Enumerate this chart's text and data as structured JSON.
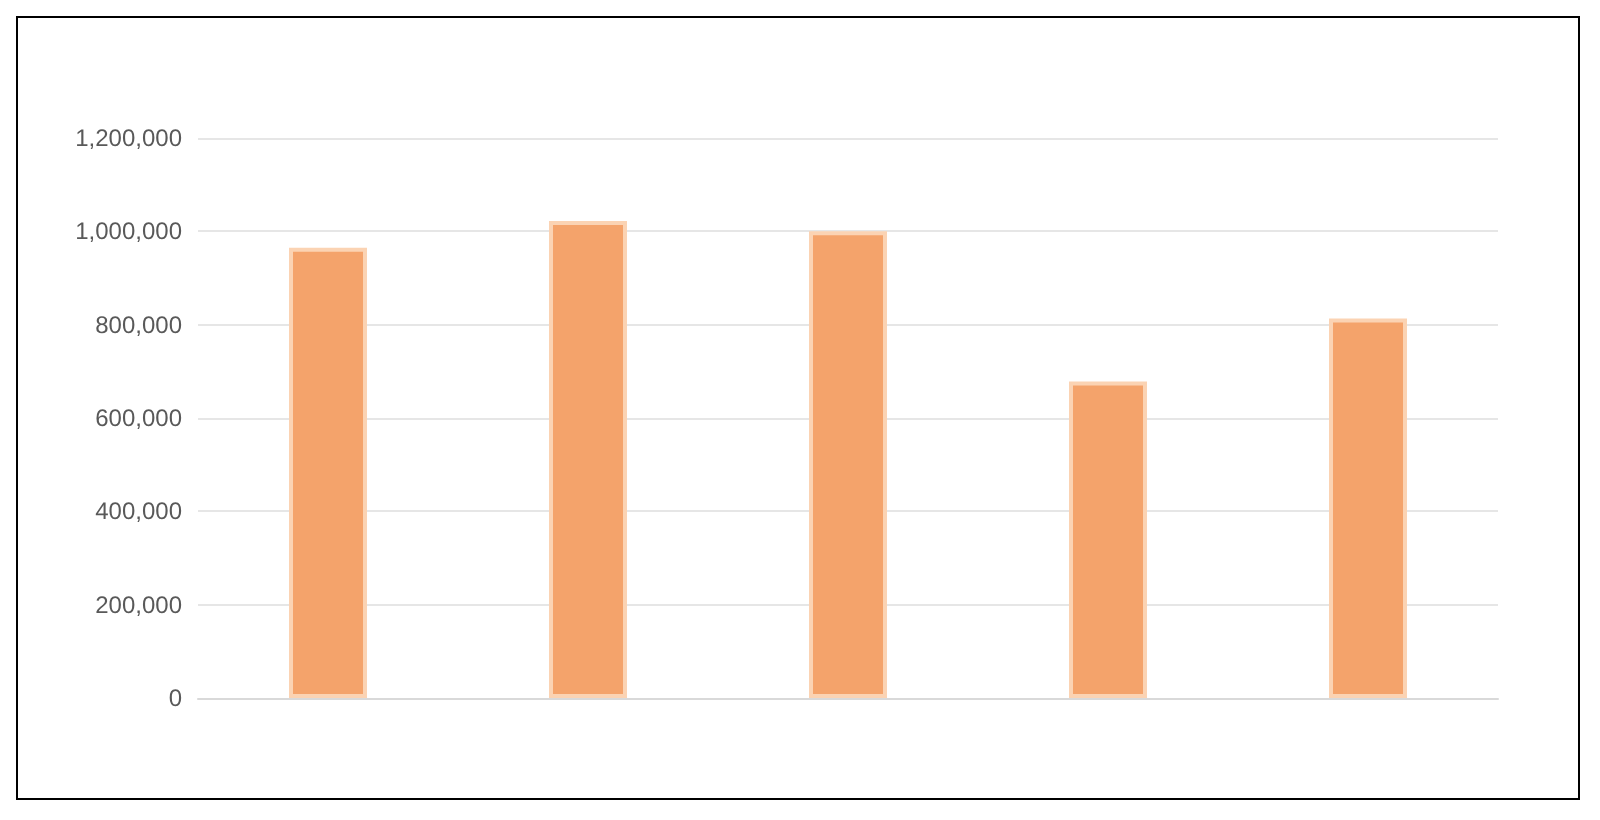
{
  "chart_data": {
    "type": "bar",
    "categories": [
      null,
      null,
      null,
      null,
      null
    ],
    "values": [
      965000,
      1022000,
      1000000,
      678000,
      813000
    ],
    "color": "#f4a36b",
    "ylim": [
      0,
      1200000
    ],
    "yticks": [
      0,
      {
        "value": 200000,
        "label": "200,000"
      },
      {
        "value": 400000,
        "label": "400,000"
      },
      {
        "value": 600000,
        "label": "600,000"
      },
      {
        "value": 800000,
        "label": "800,000"
      },
      {
        "value": 1000000,
        "label": "1,000,000"
      },
      {
        "value": 1200000,
        "label": "1,200,000"
      }
    ],
    "grid": "y"
  }
}
